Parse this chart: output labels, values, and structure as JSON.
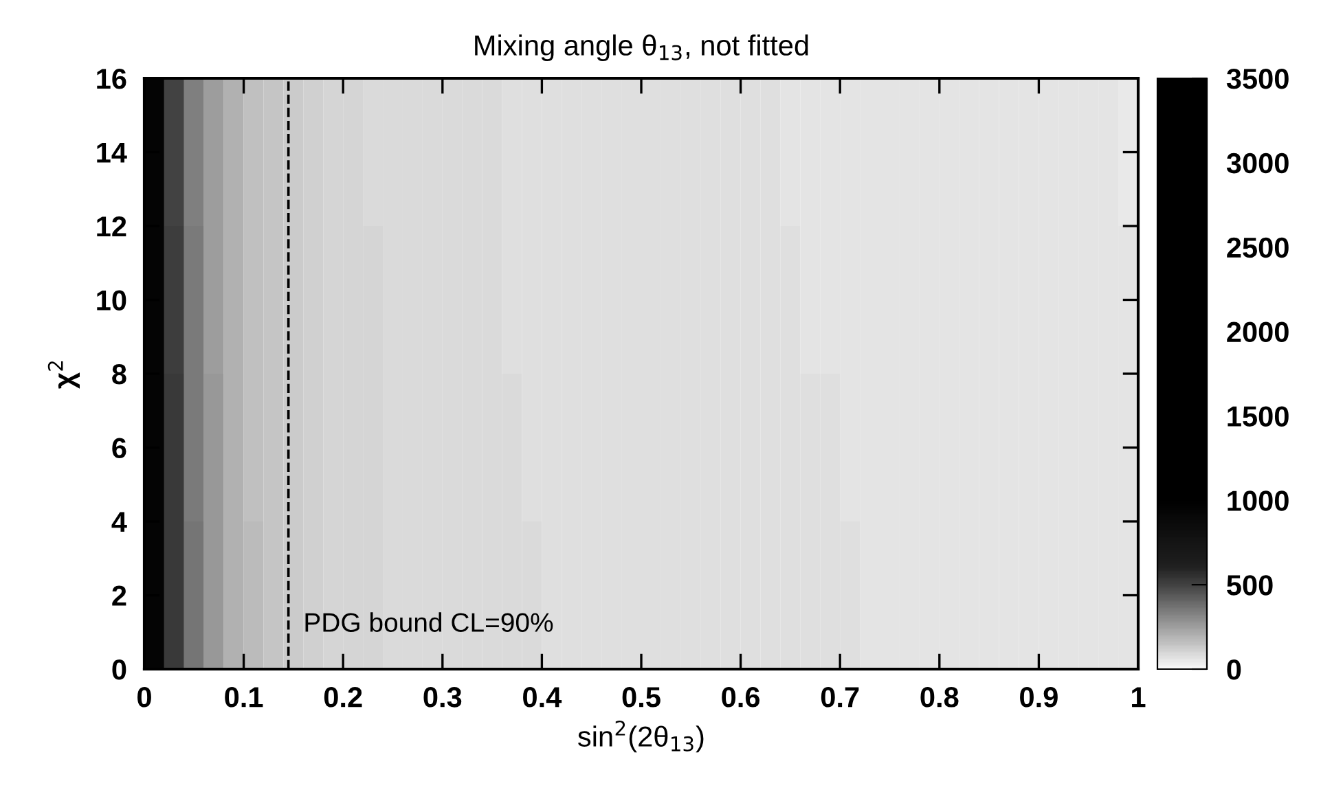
{
  "chart_data": {
    "type": "heatmap",
    "title": "Mixing angle θ$_{13}$, not fitted",
    "xlabel": "sin$^{2}$(2θ$_{13}$)",
    "ylabel": "χ$^{2}$",
    "x": [
      0.01,
      0.03,
      0.05,
      0.07,
      0.09,
      0.11,
      0.13,
      0.15,
      0.17,
      0.19,
      0.21,
      0.23,
      0.25,
      0.27,
      0.29,
      0.31,
      0.33,
      0.35,
      0.37,
      0.39,
      0.41,
      0.43,
      0.45,
      0.47,
      0.49,
      0.51,
      0.53,
      0.55,
      0.57,
      0.59,
      0.61,
      0.63,
      0.65,
      0.67,
      0.69,
      0.71,
      0.73,
      0.75,
      0.77,
      0.79,
      0.81,
      0.83,
      0.85,
      0.87,
      0.89,
      0.91,
      0.93,
      0.95,
      0.97,
      0.99
    ],
    "y": [
      14,
      10,
      6,
      2
    ],
    "cells": [
      [
        950,
        500,
        340,
        250,
        195,
        158,
        138,
        124,
        114,
        106,
        99,
        95,
        92,
        89,
        87,
        85,
        84,
        83,
        81,
        80,
        79,
        78,
        77,
        76,
        75,
        74,
        73,
        72,
        71,
        71,
        70,
        69,
        68,
        67,
        67,
        66,
        65,
        64,
        63,
        63,
        62,
        61,
        60,
        59,
        59,
        58,
        57,
        56,
        55,
        54
      ],
      [
        950,
        510,
        345,
        255,
        198,
        160,
        140,
        125,
        115,
        107,
        100,
        96,
        92,
        90,
        88,
        86,
        85,
        84,
        82,
        81,
        80,
        79,
        78,
        77,
        76,
        75,
        74,
        73,
        72,
        72,
        71,
        70,
        69,
        68,
        68,
        67,
        66,
        65,
        64,
        64,
        63,
        62,
        61,
        60,
        60,
        59,
        58,
        57,
        56,
        55
      ],
      [
        950,
        520,
        350,
        260,
        200,
        162,
        141,
        126,
        116,
        108,
        101,
        97,
        93,
        91,
        89,
        87,
        86,
        85,
        83,
        82,
        81,
        80,
        79,
        78,
        77,
        76,
        75,
        74,
        73,
        73,
        72,
        71,
        70,
        69,
        69,
        68,
        67,
        66,
        65,
        65,
        64,
        63,
        62,
        61,
        61,
        60,
        59,
        58,
        57,
        56
      ],
      [
        950,
        530,
        360,
        265,
        205,
        165,
        143,
        128,
        117,
        109,
        102,
        98,
        94,
        92,
        90,
        88,
        87,
        86,
        84,
        83,
        82,
        81,
        80,
        79,
        78,
        77,
        76,
        75,
        74,
        74,
        73,
        72,
        71,
        70,
        70,
        69,
        68,
        67,
        66,
        66,
        65,
        64,
        63,
        62,
        62,
        61,
        60,
        59,
        58,
        57
      ]
    ],
    "xlim": [
      0,
      1
    ],
    "ylim": [
      0,
      16
    ],
    "xticks": [
      0,
      0.1,
      0.2,
      0.3,
      0.4,
      0.5,
      0.6,
      0.7,
      0.8,
      0.9,
      1
    ],
    "yticks": [
      0,
      2,
      4,
      6,
      8,
      10,
      12,
      14,
      16
    ],
    "clim": [
      0,
      3500
    ],
    "cticks": [
      0,
      500,
      1000,
      1500,
      2000,
      2500,
      3000,
      3500
    ],
    "ref_lines": [
      {
        "axis": "x",
        "value": 0.145,
        "color": "#000000",
        "line_style": "dashed"
      }
    ],
    "annotations": [
      "PDG bound CL=90%"
    ]
  }
}
